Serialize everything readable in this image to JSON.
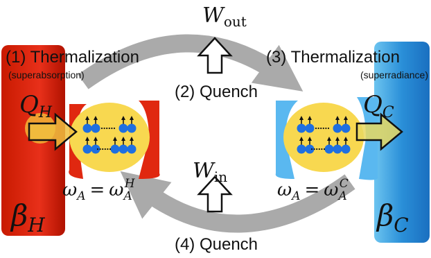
{
  "labels": {
    "step1": "(1) Thermalization",
    "step1_note": "(superabsorption)",
    "step2": "(2) Quench",
    "step3": "(3) Thermalization",
    "step3_note": "(superradiance)",
    "step4": "(4) Quench"
  },
  "math": {
    "w_out": {
      "base": "W",
      "sub": "out"
    },
    "w_in": {
      "base": "W",
      "sub": "in"
    },
    "q_h": {
      "base": "Q",
      "sub": "H"
    },
    "q_c": {
      "base": "Q",
      "sub": "C"
    },
    "beta_h": {
      "base": "β",
      "sub": "H"
    },
    "beta_c": {
      "base": "β",
      "sub": "C"
    },
    "omega_left": {
      "lhs": "ω",
      "lhs_sub": "A",
      "eq": "=",
      "rhs": "ω",
      "rhs_sub": "A",
      "rhs_sup": "H"
    },
    "omega_right": {
      "lhs": "ω",
      "lhs_sub": "A",
      "eq": "=",
      "rhs": "ω",
      "rhs_sub": "A",
      "rhs_sup": "C"
    }
  }
}
